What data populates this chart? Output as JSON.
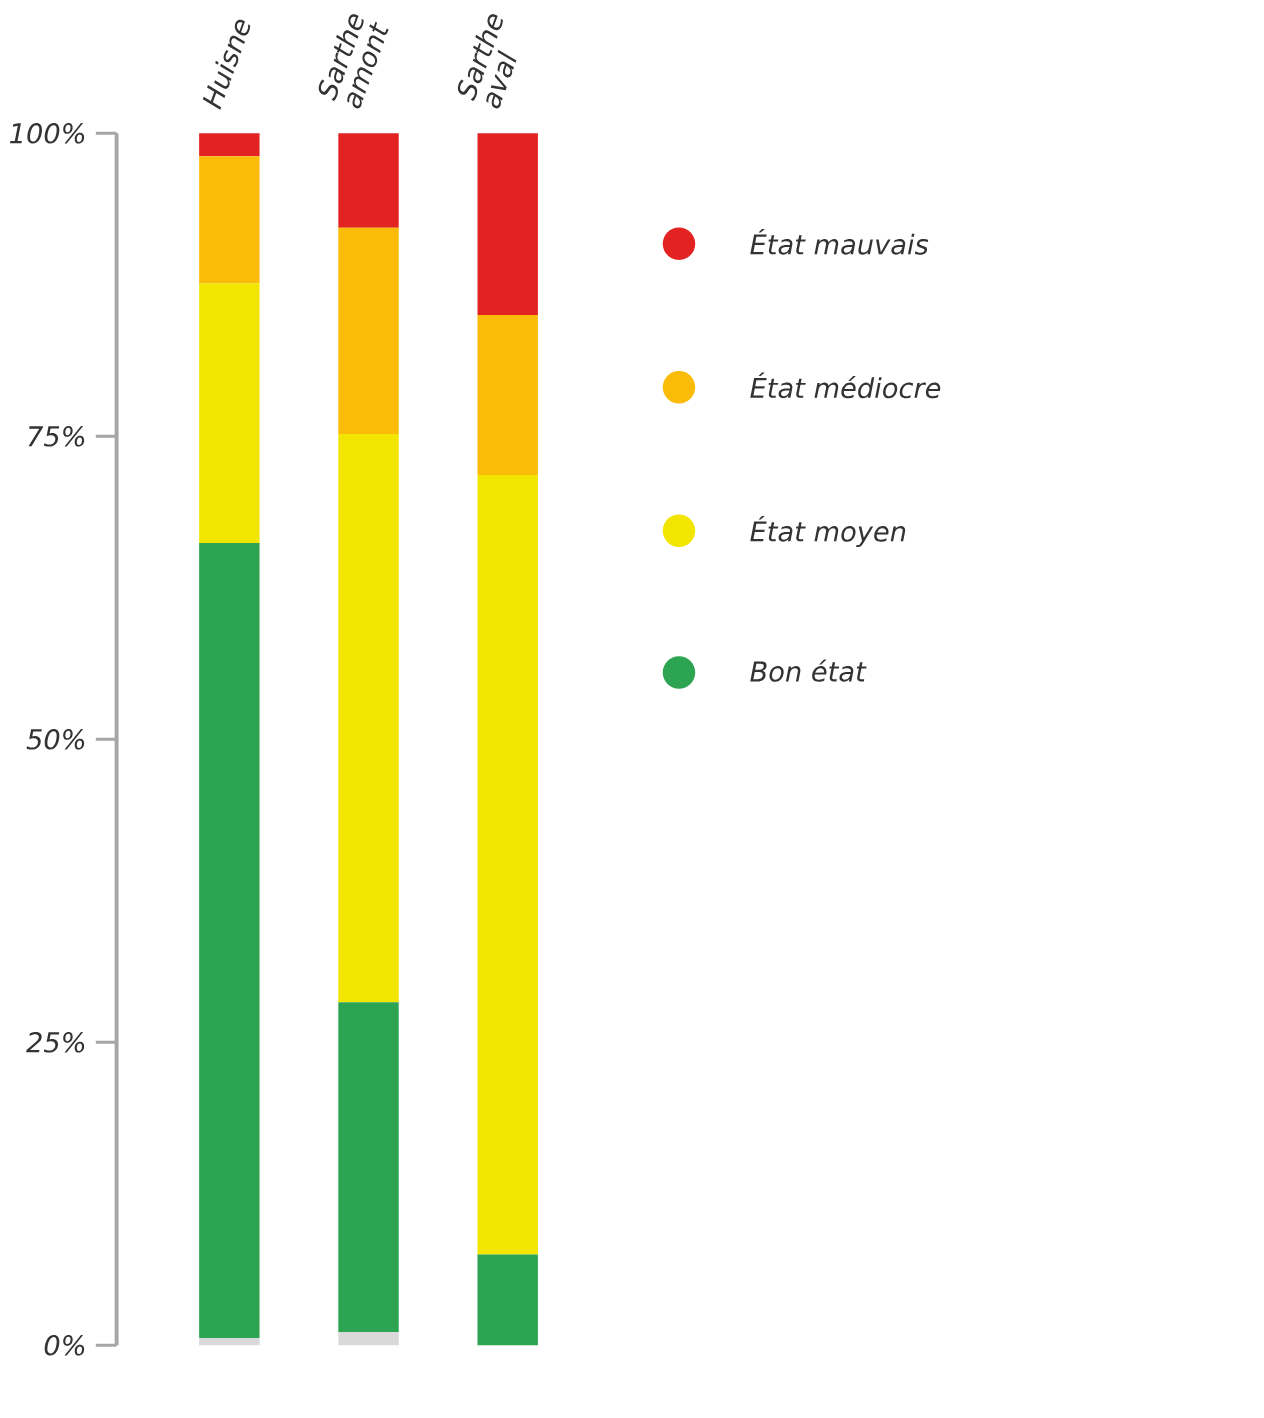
{
  "chart_data": {
    "type": "bar",
    "stacked": true,
    "categories": [
      "Huisne",
      "Sarthe amont",
      "Sarthe aval"
    ],
    "series": [
      {
        "color": "#d9d9d9",
        "values": [
          0.6,
          1.1,
          0
        ]
      },
      {
        "name": "Bon état",
        "color": "#2ca452",
        "values": [
          65.6,
          27.2,
          7.5
        ]
      },
      {
        "name": "État moyen",
        "color": "#f2e500",
        "values": [
          21.4,
          46.9,
          64.3
        ]
      },
      {
        "name": "État médiocre",
        "color": "#fbbc09",
        "values": [
          10.5,
          17.0,
          13.2
        ]
      },
      {
        "name": "État mauvais",
        "color": "#e32322",
        "values": [
          1.9,
          7.8,
          15.0
        ]
      }
    ],
    "ylim": [
      0,
      100
    ],
    "yticks": [
      {
        "value": 0,
        "label": "0%"
      },
      {
        "value": 25,
        "label": "25%"
      },
      {
        "value": 50,
        "label": "50%"
      },
      {
        "value": 75,
        "label": "75%"
      },
      {
        "value": 100,
        "label": "100%"
      }
    ],
    "legend": "right"
  }
}
